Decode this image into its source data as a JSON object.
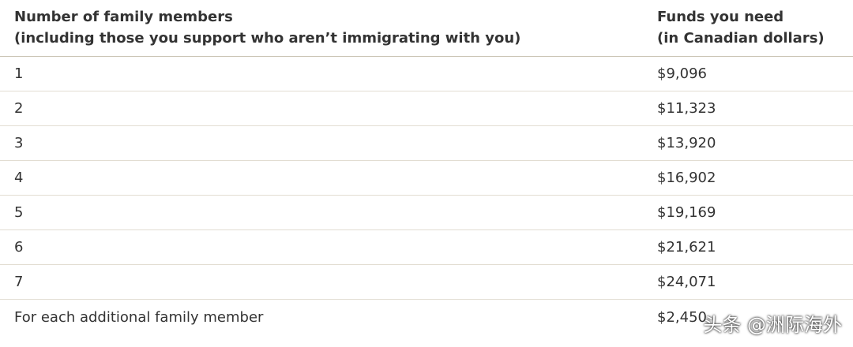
{
  "table": {
    "header": [
      {
        "lines": [
          "Number of family members",
          "(including those you support who aren’t immigrating with you)"
        ]
      },
      {
        "lines": [
          "Funds you need",
          "(in Canadian dollars)"
        ]
      }
    ],
    "rows": [
      [
        "1",
        "$9,096"
      ],
      [
        "2",
        "$11,323"
      ],
      [
        "3",
        "$13,920"
      ],
      [
        "4",
        "$16,902"
      ],
      [
        "5",
        "$19,169"
      ],
      [
        "6",
        "$21,621"
      ],
      [
        "7",
        "$24,071"
      ],
      [
        "For each additional family member",
        "$2,450"
      ]
    ]
  },
  "watermark": "头条 @洲际海外"
}
